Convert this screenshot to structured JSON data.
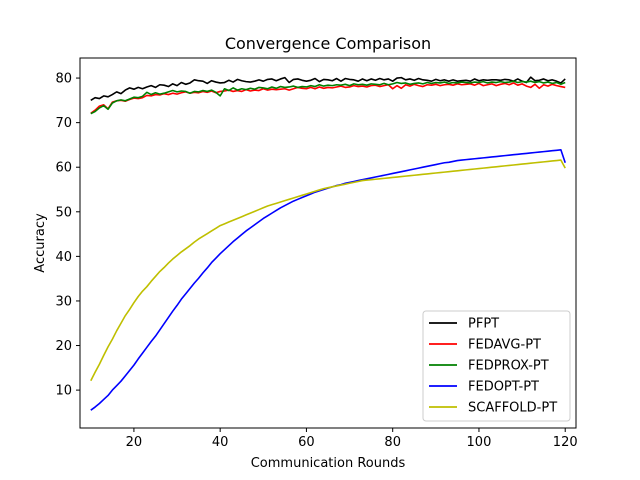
{
  "chart_data": {
    "type": "line",
    "title": "Convergence Comparison",
    "xlabel": "Communication Rounds",
    "ylabel": "Accuracy",
    "xlim": [
      7.5,
      122.5
    ],
    "ylim": [
      1.5,
      84.5
    ],
    "xticks": [
      20,
      40,
      60,
      80,
      100,
      120
    ],
    "yticks": [
      10,
      20,
      30,
      40,
      50,
      60,
      70,
      80
    ],
    "grid": false,
    "legend_position": "bottom-right",
    "x": [
      10,
      11,
      12,
      13,
      14,
      15,
      16,
      17,
      18,
      19,
      20,
      21,
      22,
      23,
      24,
      25,
      26,
      27,
      28,
      29,
      30,
      31,
      32,
      33,
      34,
      35,
      36,
      37,
      38,
      39,
      40,
      41,
      42,
      43,
      44,
      45,
      46,
      47,
      48,
      49,
      50,
      51,
      52,
      53,
      54,
      55,
      56,
      57,
      58,
      59,
      60,
      61,
      62,
      63,
      64,
      65,
      66,
      67,
      68,
      69,
      70,
      71,
      72,
      73,
      74,
      75,
      76,
      77,
      78,
      79,
      80,
      81,
      82,
      83,
      84,
      85,
      86,
      87,
      88,
      89,
      90,
      91,
      92,
      93,
      94,
      95,
      96,
      97,
      98,
      99,
      100,
      101,
      102,
      103,
      104,
      105,
      106,
      107,
      108,
      109,
      110,
      111,
      112,
      113,
      114,
      115,
      116,
      117,
      118,
      119,
      120
    ],
    "series": [
      {
        "name": "PFPT",
        "color": "#000000",
        "values": [
          75.0,
          75.6,
          75.4,
          76.0,
          75.8,
          76.3,
          76.9,
          76.5,
          77.3,
          77.8,
          77.5,
          77.9,
          77.6,
          78.0,
          78.3,
          77.9,
          78.5,
          78.4,
          78.1,
          78.7,
          78.3,
          79.0,
          78.6,
          78.9,
          79.6,
          79.4,
          79.3,
          78.8,
          79.4,
          79.1,
          78.9,
          79.0,
          79.5,
          79.1,
          79.7,
          79.4,
          79.2,
          79.1,
          79.3,
          79.6,
          79.3,
          79.7,
          79.8,
          79.4,
          79.8,
          80.1,
          79.0,
          79.7,
          79.8,
          79.5,
          79.3,
          79.5,
          79.9,
          79.2,
          79.7,
          79.6,
          79.4,
          79.9,
          79.3,
          79.9,
          79.7,
          79.6,
          79.3,
          79.8,
          79.4,
          79.8,
          79.5,
          79.9,
          79.6,
          79.8,
          79.3,
          80.0,
          80.1,
          79.6,
          79.8,
          79.5,
          79.9,
          79.6,
          79.5,
          79.3,
          79.7,
          79.4,
          79.6,
          79.3,
          79.6,
          79.3,
          79.4,
          79.5,
          79.3,
          79.8,
          79.4,
          79.6,
          79.5,
          79.6,
          79.6,
          79.5,
          79.7,
          79.6,
          79.3,
          79.8,
          79.3,
          79.0,
          80.2,
          79.4,
          79.5,
          79.8,
          79.4,
          79.6,
          79.3,
          78.9,
          79.8
        ]
      },
      {
        "name": "FEDAVG-PT",
        "color": "#ff0000",
        "values": [
          72.1,
          72.8,
          73.7,
          74.0,
          73.1,
          74.6,
          74.9,
          75.0,
          74.8,
          75.2,
          75.5,
          75.4,
          75.6,
          76.1,
          76.0,
          76.3,
          76.2,
          76.5,
          76.3,
          76.6,
          76.4,
          76.7,
          76.9,
          76.6,
          76.8,
          76.7,
          77.0,
          76.8,
          77.1,
          76.7,
          77.0,
          77.1,
          77.3,
          77.0,
          77.2,
          77.0,
          77.4,
          77.1,
          77.3,
          77.2,
          77.6,
          77.3,
          77.5,
          77.4,
          77.5,
          77.6,
          77.3,
          77.6,
          77.9,
          77.7,
          77.6,
          77.9,
          77.6,
          78.0,
          77.7,
          77.9,
          77.8,
          78.0,
          78.2,
          77.9,
          78.0,
          78.3,
          78.1,
          78.2,
          78.0,
          78.3,
          78.4,
          78.1,
          78.3,
          78.5,
          77.6,
          78.3,
          77.7,
          78.5,
          78.2,
          78.6,
          78.3,
          78.1,
          78.5,
          78.4,
          78.6,
          78.3,
          78.5,
          78.6,
          78.4,
          78.7,
          78.5,
          78.6,
          78.7,
          78.4,
          78.8,
          78.3,
          78.5,
          78.7,
          78.3,
          78.6,
          78.8,
          78.5,
          78.9,
          78.4,
          78.7,
          78.2,
          77.9,
          78.6,
          77.7,
          78.5,
          78.2,
          78.6,
          78.3,
          78.1,
          77.9
        ]
      },
      {
        "name": "FEDPROX-PT",
        "color": "#008000",
        "values": [
          72.0,
          72.5,
          73.3,
          73.8,
          73.0,
          74.4,
          74.9,
          75.1,
          74.9,
          75.3,
          75.7,
          75.6,
          75.9,
          76.8,
          76.3,
          76.7,
          76.4,
          76.6,
          76.9,
          77.2,
          76.9,
          77.1,
          77.0,
          76.6,
          77.0,
          76.9,
          77.2,
          77.0,
          77.3,
          76.8,
          76.0,
          77.6,
          77.2,
          77.8,
          77.3,
          77.6,
          77.4,
          77.7,
          77.5,
          77.9,
          77.8,
          77.6,
          78.0,
          77.7,
          78.1,
          77.9,
          78.0,
          78.2,
          77.9,
          78.1,
          78.0,
          78.3,
          78.1,
          78.5,
          78.2,
          78.4,
          78.3,
          78.5,
          78.4,
          78.6,
          78.3,
          78.7,
          78.5,
          78.6,
          78.4,
          78.7,
          78.6,
          78.5,
          78.8,
          78.5,
          78.7,
          79.0,
          78.8,
          78.9,
          78.6,
          78.8,
          78.9,
          78.7,
          79.0,
          78.8,
          79.0,
          78.9,
          79.1,
          78.8,
          79.0,
          78.9,
          79.1,
          79.0,
          78.9,
          79.1,
          79.0,
          79.2,
          78.9,
          79.1,
          79.0,
          79.2,
          79.0,
          79.1,
          79.3,
          79.0,
          79.2,
          79.1,
          79.3,
          79.0,
          79.2,
          78.9,
          79.1,
          78.8,
          79.0,
          78.6,
          79.0
        ]
      },
      {
        "name": "FEDOPT-PT",
        "color": "#0000ff",
        "values": [
          5.5,
          6.2,
          7.0,
          7.9,
          8.8,
          10.0,
          11.0,
          12.0,
          13.2,
          14.4,
          15.6,
          17.0,
          18.3,
          19.6,
          20.9,
          22.1,
          23.5,
          24.9,
          26.3,
          27.7,
          29.0,
          30.4,
          31.6,
          32.8,
          34.0,
          35.1,
          36.3,
          37.4,
          38.6,
          39.6,
          40.6,
          41.5,
          42.4,
          43.3,
          44.1,
          44.9,
          45.7,
          46.4,
          47.1,
          47.8,
          48.5,
          49.1,
          49.7,
          50.3,
          50.9,
          51.4,
          51.9,
          52.4,
          52.8,
          53.2,
          53.6,
          54.0,
          54.4,
          54.7,
          55.0,
          55.3,
          55.6,
          55.9,
          56.1,
          56.4,
          56.6,
          56.8,
          57.0,
          57.2,
          57.4,
          57.6,
          57.8,
          58.0,
          58.2,
          58.4,
          58.6,
          58.8,
          59.0,
          59.2,
          59.4,
          59.6,
          59.8,
          60.0,
          60.2,
          60.4,
          60.6,
          60.8,
          61.0,
          61.1,
          61.3,
          61.5,
          61.6,
          61.7,
          61.8,
          61.9,
          62.0,
          62.1,
          62.2,
          62.3,
          62.4,
          62.5,
          62.6,
          62.7,
          62.8,
          62.9,
          63.0,
          63.1,
          63.2,
          63.3,
          63.4,
          63.5,
          63.6,
          63.7,
          63.8,
          63.9,
          61.0
        ]
      },
      {
        "name": "SCAFFOLD-PT",
        "color": "#bfbf00",
        "values": [
          12.1,
          14.0,
          15.8,
          17.8,
          19.7,
          21.4,
          23.3,
          25.0,
          26.7,
          28.1,
          29.6,
          31.0,
          32.2,
          33.2,
          34.4,
          35.5,
          36.6,
          37.5,
          38.5,
          39.4,
          40.2,
          41.0,
          41.7,
          42.4,
          43.2,
          43.9,
          44.5,
          45.1,
          45.7,
          46.3,
          46.9,
          47.3,
          47.7,
          48.1,
          48.5,
          48.9,
          49.3,
          49.7,
          50.1,
          50.5,
          50.9,
          51.3,
          51.6,
          51.9,
          52.2,
          52.5,
          52.8,
          53.1,
          53.4,
          53.7,
          54.0,
          54.3,
          54.6,
          54.9,
          55.2,
          55.4,
          55.6,
          55.8,
          56.0,
          56.2,
          56.4,
          56.6,
          56.8,
          57.0,
          57.1,
          57.2,
          57.3,
          57.4,
          57.5,
          57.6,
          57.7,
          57.8,
          57.9,
          58.0,
          58.1,
          58.2,
          58.3,
          58.4,
          58.5,
          58.6,
          58.7,
          58.8,
          58.9,
          59.0,
          59.1,
          59.2,
          59.3,
          59.4,
          59.5,
          59.6,
          59.7,
          59.8,
          59.9,
          60.0,
          60.1,
          60.2,
          60.3,
          60.4,
          60.5,
          60.6,
          60.7,
          60.8,
          60.9,
          61.0,
          61.1,
          61.2,
          61.3,
          61.4,
          61.5,
          61.6,
          59.8
        ]
      }
    ]
  }
}
